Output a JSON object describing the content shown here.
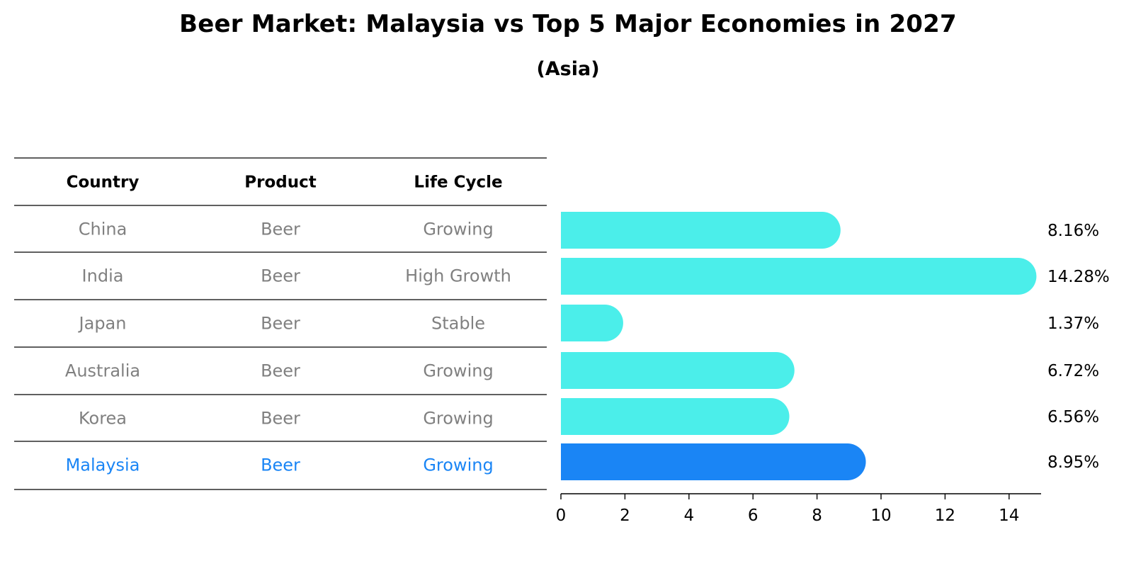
{
  "title": "Beer Market: Malaysia vs Top 5 Major Economies in 2027",
  "subtitle": "(Asia)",
  "colors": {
    "bar": "#4beeea",
    "highlight_bar": "#1a85f5",
    "text_muted": "#808080",
    "text_highlight": "#1a85f5"
  },
  "table": {
    "headers": [
      "Country",
      "Product",
      "Life Cycle"
    ],
    "rows": [
      [
        "China",
        "Beer",
        "Growing"
      ],
      [
        "India",
        "Beer",
        "High Growth"
      ],
      [
        "Japan",
        "Beer",
        "Stable"
      ],
      [
        "Australia",
        "Beer",
        "Growing"
      ],
      [
        "Korea",
        "Beer",
        "Growing"
      ],
      [
        "Malaysia",
        "Beer",
        "Growing"
      ]
    ],
    "highlight_row": 5
  },
  "chart_data": {
    "type": "bar",
    "orientation": "horizontal",
    "categories": [
      "China",
      "India",
      "Japan",
      "Australia",
      "Korea",
      "Malaysia"
    ],
    "values": [
      8.16,
      14.28,
      1.37,
      6.72,
      6.56,
      8.95
    ],
    "value_labels": [
      "8.16%",
      "14.28%",
      "1.37%",
      "6.72%",
      "6.56%",
      "8.95%"
    ],
    "highlight_index": 5,
    "xlim": [
      0,
      15
    ],
    "xticks": [
      0,
      2,
      4,
      6,
      8,
      10,
      12,
      14
    ],
    "grid": false
  }
}
